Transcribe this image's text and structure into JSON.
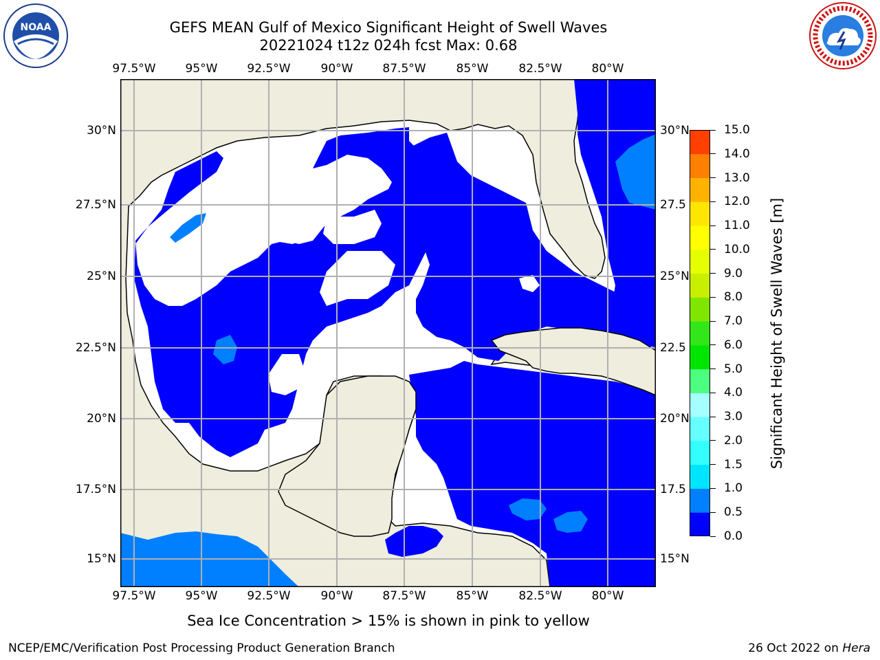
{
  "title": {
    "line1": "GEFS MEAN Gulf of Mexico Significant Height of Swell Waves",
    "line2": "20221024 t12z 024h fcst   Max: 0.68"
  },
  "logos": {
    "left": "NOAA",
    "right": "NATIONAL WEATHER SERVICE"
  },
  "map": {
    "lon_ticks": [
      "97.5°W",
      "95°W",
      "92.5°W",
      "90°W",
      "87.5°W",
      "85°W",
      "82.5°W",
      "80°W"
    ],
    "lat_ticks_left": [
      "30°N",
      "27.5°N",
      "25°N",
      "22.5°N",
      "20°N",
      "17.5°N",
      "15°N"
    ],
    "lat_ticks_right": [
      "30°N",
      "27.5",
      "25°N",
      "22.5",
      "20°N",
      "17.5",
      "15°N"
    ],
    "colors": {
      "land": "#eeedde",
      "sea_low": "#0000ff",
      "sea_mid": "#0080ff",
      "no_data": "#ffffff",
      "grid": "#b0b0b0",
      "coast": "#000000"
    }
  },
  "colorbar": {
    "label": "Significant Height of Swell Waves [m]",
    "ticks": [
      "0.0",
      "0.5",
      "1.0",
      "1.5",
      "2.0",
      "3.0",
      "4.0",
      "5.0",
      "6.0",
      "7.0",
      "8.0",
      "9.0",
      "10.0",
      "11.0",
      "12.0",
      "13.0",
      "14.0",
      "15.0"
    ],
    "colors": [
      "#0000ff",
      "#0080ff",
      "#00e5ff",
      "#33ffff",
      "#66ffff",
      "#a6ffff",
      "#4dff80",
      "#00e600",
      "#33e619",
      "#80e600",
      "#c8ee00",
      "#e6ff00",
      "#ffff00",
      "#ffe600",
      "#ffb300",
      "#ff8000",
      "#ff4000",
      "#ff0000"
    ]
  },
  "ice_note": "Sea Ice Concentration > 15% is shown in pink to yellow",
  "footer": {
    "left": "NCEP/EMC/Verification Post Processing Product Generation Branch",
    "date": "26 Oct 2022 on ",
    "host": "Hera"
  }
}
